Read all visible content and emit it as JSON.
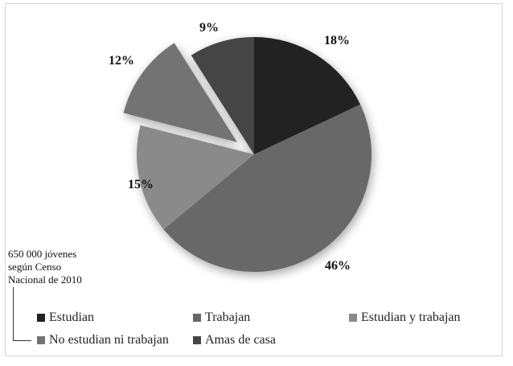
{
  "chart_data": {
    "type": "pie",
    "title": "",
    "categories": [
      "Estudian",
      "Trabajan",
      "Estudian y trabajan",
      "No estudian ni trabajan",
      "Amas de casa"
    ],
    "values": [
      18,
      46,
      15,
      12,
      9
    ],
    "labels": [
      "18%",
      "46%",
      "15%",
      "12%",
      "9%"
    ],
    "colors": [
      "#222222",
      "#686868",
      "#8a8a8a",
      "#737373",
      "#454545"
    ],
    "exploded": [
      "No estudian ni trabajan"
    ],
    "legend_position": "bottom",
    "annotation": "650 000 jóvenes según Censo Nacional de 2010"
  },
  "note": {
    "line1": "650 000 jóvenes",
    "line2": "según Censo",
    "line3": "Nacional de 2010"
  },
  "legend": [
    {
      "label": "Estudian",
      "color": "#222222"
    },
    {
      "label": "Trabajan",
      "color": "#686868"
    },
    {
      "label": "Estudian y trabajan",
      "color": "#8a8a8a"
    },
    {
      "label": "No estudian ni trabajan",
      "color": "#737373"
    },
    {
      "label": "Amas de casa",
      "color": "#454545"
    }
  ],
  "pct_labels": {
    "estudian": "18%",
    "trabajan": "46%",
    "estudian_y_trabajan": "15%",
    "no_estudian_ni_trabajan": "12%",
    "amas_de_casa": "9%"
  }
}
